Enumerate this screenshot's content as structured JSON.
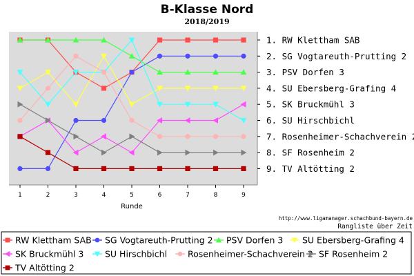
{
  "chart_data": {
    "type": "line",
    "title": "B-Klasse Nord",
    "subtitle": "2018/2019",
    "xlabel": "Runde",
    "ylabel": "",
    "x": [
      1,
      2,
      3,
      4,
      5,
      6,
      7,
      8,
      9
    ],
    "ylim": [
      1,
      9
    ],
    "y_inverted": true,
    "grid": false,
    "legend_position": "bottom",
    "source_url": "http://www.ligamanager.schachbund-bayern.de",
    "source_note": "Rangliste über Zeit",
    "rank_labels": [
      "1. RW Klettham SAB",
      "2. SG Vogtareuth-Prutting 2",
      "3. PSV Dorfen 3",
      "4. SU Ebersberg-Grafing 4",
      "5. SK Bruckmühl 3",
      "6. SU Hirschbichl",
      "7. Rosenheimer-Schachverein 2",
      "8. SF Rosenheim 2",
      "9. TV Altötting 2"
    ],
    "series": [
      {
        "name": "RW Klettham SAB",
        "color": "#ff4d4d",
        "marker": "square",
        "values": [
          1,
          1,
          3,
          4,
          3,
          1,
          1,
          1,
          1
        ]
      },
      {
        "name": "SG Vogtareuth-Prutting 2",
        "color": "#4d4dff",
        "marker": "circle",
        "values": [
          9,
          9,
          6,
          6,
          3,
          2,
          2,
          2,
          2
        ]
      },
      {
        "name": "PSV Dorfen 3",
        "color": "#4dff4d",
        "marker": "triangle-up",
        "values": [
          1,
          1,
          1,
          1,
          2,
          3,
          3,
          3,
          3
        ]
      },
      {
        "name": "SU Ebersberg-Grafing 4",
        "color": "#ffff4d",
        "marker": "triangle-down",
        "values": [
          4,
          3,
          5,
          2,
          5,
          4,
          4,
          4,
          4
        ]
      },
      {
        "name": "SK Bruckmühl 3",
        "color": "#ff4dff",
        "marker": "triangle-left",
        "values": [
          7,
          6,
          8,
          7,
          8,
          6,
          6,
          6,
          5
        ]
      },
      {
        "name": "SU Hirschbichl",
        "color": "#4dffff",
        "marker": "triangle-down",
        "values": [
          3,
          5,
          3,
          3,
          1,
          5,
          5,
          5,
          6
        ]
      },
      {
        "name": "Rosenheimer-Schachverein 2",
        "color": "#ffb3b3",
        "marker": "circle",
        "values": [
          6,
          4,
          2,
          3,
          6,
          7,
          7,
          7,
          7
        ]
      },
      {
        "name": "SF Rosenheim 2",
        "color": "#808080",
        "marker": "triangle-right",
        "values": [
          5,
          6,
          7,
          8,
          7,
          8,
          8,
          8,
          8
        ]
      },
      {
        "name": "TV Altötting 2",
        "color": "#b30000",
        "marker": "square",
        "values": [
          7,
          8,
          9,
          9,
          9,
          9,
          9,
          9,
          9
        ]
      }
    ]
  }
}
